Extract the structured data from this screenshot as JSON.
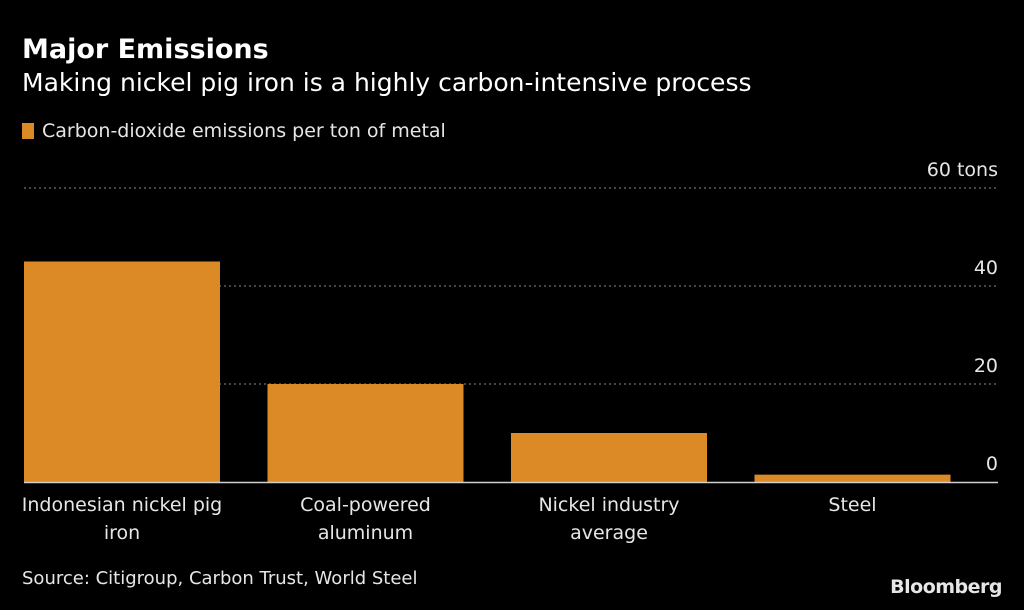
{
  "header": {
    "title": "Major Emissions",
    "subtitle": "Making nickel pig iron is a highly carbon-intensive process"
  },
  "legend": {
    "label": "Carbon-dioxide emissions per ton of metal",
    "color": "#dc8a26"
  },
  "footer": {
    "source": "Source: Citigroup, Carbon Trust, World Steel",
    "brand": "Bloomberg"
  },
  "chart_data": {
    "type": "bar",
    "title": "Major Emissions",
    "subtitle": "Making nickel pig iron is a highly carbon-intensive process",
    "categories": [
      [
        "Indonesian nickel pig",
        "iron"
      ],
      [
        "Coal-powered",
        "aluminum"
      ],
      [
        "Nickel industry",
        "average"
      ],
      [
        "Steel"
      ]
    ],
    "series": [
      {
        "name": "Carbon-dioxide emissions per ton of metal",
        "values": [
          45,
          20,
          10,
          1.5
        ],
        "color": "#dc8a26"
      }
    ],
    "ylim": [
      0,
      60
    ],
    "yticks": [
      0,
      20,
      40,
      60
    ],
    "ytick_labels": [
      "0",
      "20",
      "40",
      "60 tons"
    ],
    "ylabel": "",
    "xlabel": "",
    "grid": true,
    "y_axis_side": "right",
    "legend_position": "top-left"
  }
}
